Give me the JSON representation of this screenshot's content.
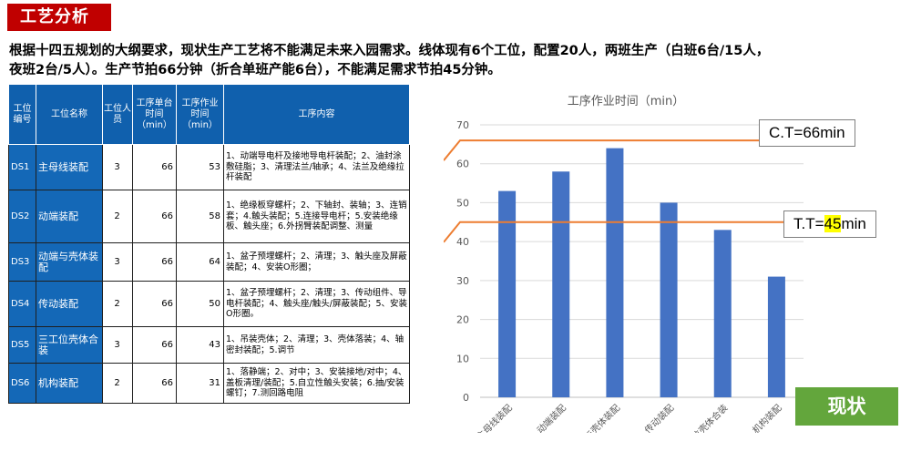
{
  "header": {
    "title": "工艺分析"
  },
  "intro": {
    "line1": "根据十四五规划的大纲要求，现状生产工艺将不能满足未来入园需求。线体现有6个工位，配置20人，两班生产（白班6台/15人，",
    "line2": "夜班2台/5人）。生产节拍66分钟（折合单班产能6台），不能满足需求节拍45分钟。"
  },
  "table": {
    "headers": {
      "code": "工位编号",
      "name": "工位名称",
      "staff": "工位人员",
      "unit_time": "工序单台时间（min）",
      "work_time": "工序作业时间（min）",
      "content": "工序内容"
    },
    "rows": [
      {
        "code": "DS1",
        "name": "主母线装配",
        "staff": "3",
        "unit_time": "66",
        "work_time": "53",
        "content": "1、动端导电杆及接地导电杆装配；2、油封涂敷硅脂；3、清理法兰/轴承；4、法兰及绝缘拉杆装配"
      },
      {
        "code": "DS2",
        "name": "动端装配",
        "staff": "2",
        "unit_time": "66",
        "work_time": "58",
        "content": "1、绝缘板穿螺杆；2、下轴封、装轴；3、连销套；4.触头装配；5.连接导电杆；5.安装绝缘板、触头座；6.外拐臂装配调整、测量"
      },
      {
        "code": "DS3",
        "name": "动端与壳体装配",
        "staff": "3",
        "unit_time": "66",
        "work_time": "64",
        "content": "1、盆子预埋螺杆；2、清理；3、触头座及屏蔽装配；4、安装O形圈；"
      },
      {
        "code": "DS4",
        "name": "传动装配",
        "staff": "2",
        "unit_time": "66",
        "work_time": "50",
        "content": "1、盆子预埋螺杆；2、清理；3、传动组件、导电杆装配；4、触头座/触头/屏蔽装配；5、安装O形圈。"
      },
      {
        "code": "DS5",
        "name": "三工位壳体合装",
        "staff": "3",
        "unit_time": "66",
        "work_time": "43",
        "content": "1、吊装壳体；2、清理；3、壳体落装；4、轴密封装配；5.调节"
      },
      {
        "code": "DS6",
        "name": "机构装配",
        "staff": "2",
        "unit_time": "66",
        "work_time": "31",
        "content": "1、落静端；2、对中；3、安装接地/对中；4、盖板清理/装配；5.自立性触头安装；6.抽/安装螺钉；7.测回路电阻"
      }
    ]
  },
  "chart_data": {
    "type": "bar",
    "title": "工序作业时间（min）",
    "categories": [
      "主母线装配",
      "动端装配",
      "动端与壳体装配",
      "传动装配",
      "三工位壳体合装",
      "机构装配"
    ],
    "values": [
      53,
      58,
      64,
      50,
      43,
      31
    ],
    "ylim": [
      0,
      70
    ],
    "yticks": [
      0,
      10,
      20,
      30,
      40,
      50,
      60,
      70
    ],
    "bar_color": "#4472c4",
    "grid": true,
    "reference_lines": [
      {
        "value": 66,
        "label_prefix": "C.T=",
        "label_value": "66",
        "label_suffix": "min",
        "color": "#ed7d31"
      },
      {
        "value": 45,
        "label_prefix": "T.T=",
        "label_value": "45",
        "label_suffix": "min",
        "color": "#ed7d31",
        "highlight_value": true
      }
    ]
  },
  "status_badge": {
    "label": "现状",
    "color": "#63a63c"
  }
}
